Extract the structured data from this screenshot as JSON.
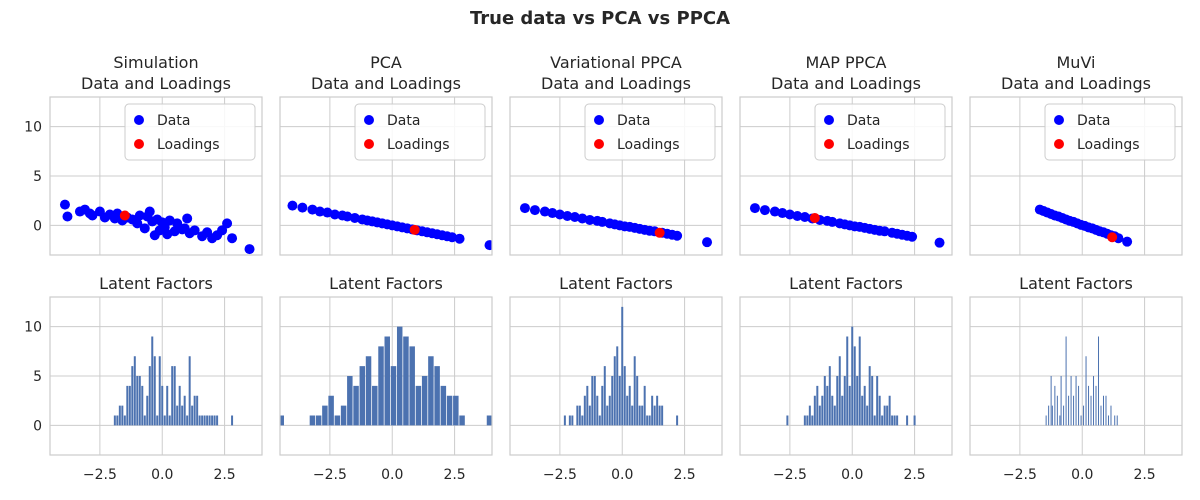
{
  "figure": {
    "suptitle": "True data vs PCA vs PPCA",
    "x_ticks": [
      "−2.5",
      "0.0",
      "2.5"
    ],
    "y_ticks": [
      "0",
      "5",
      "10"
    ]
  },
  "colors": {
    "data": "#0000ff",
    "loadings": "#ff0000",
    "bars": "#4c72b0"
  },
  "chart_data": [
    {
      "type": "scatter",
      "title_line1": "Simulation",
      "title_line2": "Data and Loadings",
      "xlim": [
        -4.5,
        4
      ],
      "ylim": [
        -3,
        13
      ],
      "grid": true,
      "legend": "upper-right",
      "series": [
        {
          "name": "Data",
          "x": [
            -3.9,
            -3.8,
            -3.3,
            -3.1,
            -2.9,
            -2.8,
            -2.5,
            -2.3,
            -2.1,
            -1.9,
            -1.8,
            -1.6,
            -1.4,
            -1.2,
            -1.0,
            -0.9,
            -0.7,
            -0.5,
            -0.4,
            -0.3,
            -0.2,
            -0.1,
            0.0,
            0.1,
            0.3,
            0.5,
            0.6,
            0.8,
            1.0,
            1.1,
            1.3,
            1.6,
            1.8,
            2.0,
            2.2,
            2.4,
            2.6,
            2.8,
            3.5,
            -0.6,
            0.2,
            0.9
          ],
          "y": [
            2.1,
            0.9,
            1.4,
            1.6,
            1.2,
            1.0,
            1.4,
            0.8,
            1.1,
            0.7,
            1.2,
            0.5,
            0.8,
            0.6,
            0.2,
            1.0,
            -0.3,
            1.4,
            0.4,
            -1.0,
            0.6,
            -0.5,
            0.3,
            -0.2,
            0.5,
            -0.6,
            0.2,
            -0.4,
            0.7,
            -0.8,
            -0.5,
            -1.1,
            -0.7,
            -1.3,
            -1.0,
            -0.5,
            0.2,
            -1.3,
            -2.4,
            0.9,
            -0.9,
            -0.3
          ]
        },
        {
          "name": "Loadings",
          "x": [
            -1.5
          ],
          "y": [
            1.0
          ]
        }
      ]
    },
    {
      "type": "scatter",
      "title_line1": "PCA",
      "title_line2": "Data and Loadings",
      "xlim": [
        -4.5,
        4
      ],
      "ylim": [
        -3,
        13
      ],
      "grid": true,
      "legend": "upper-right",
      "series": [
        {
          "name": "Data",
          "x": [
            -4.0,
            -3.6,
            -3.2,
            -2.9,
            -2.6,
            -2.3,
            -2.0,
            -1.8,
            -1.5,
            -1.2,
            -1.0,
            -0.8,
            -0.6,
            -0.4,
            -0.2,
            0.0,
            0.2,
            0.4,
            0.6,
            0.8,
            1.0,
            1.2,
            1.4,
            1.6,
            1.8,
            2.0,
            2.2,
            2.4,
            2.7,
            3.9
          ],
          "y": [
            2.0,
            1.8,
            1.6,
            1.4,
            1.3,
            1.1,
            1.0,
            0.9,
            0.75,
            0.6,
            0.5,
            0.4,
            0.3,
            0.2,
            0.1,
            0.0,
            -0.1,
            -0.2,
            -0.3,
            -0.4,
            -0.5,
            -0.6,
            -0.7,
            -0.8,
            -0.9,
            -1.0,
            -1.1,
            -1.2,
            -1.35,
            -2.0
          ]
        },
        {
          "name": "Loadings",
          "x": [
            0.9
          ],
          "y": [
            -0.45
          ]
        }
      ]
    },
    {
      "type": "scatter",
      "title_line1": "Variational PPCA",
      "title_line2": "Data and Loadings",
      "xlim": [
        -4.5,
        4
      ],
      "ylim": [
        -3,
        13
      ],
      "grid": true,
      "legend": "upper-right",
      "series": [
        {
          "name": "Data",
          "x": [
            -3.9,
            -3.5,
            -3.1,
            -2.8,
            -2.5,
            -2.2,
            -1.9,
            -1.6,
            -1.3,
            -1.0,
            -0.8,
            -0.5,
            -0.3,
            -0.1,
            0.1,
            0.3,
            0.5,
            0.7,
            0.9,
            1.1,
            1.3,
            1.6,
            1.8,
            2.0,
            2.2,
            3.4
          ],
          "y": [
            1.75,
            1.55,
            1.4,
            1.25,
            1.1,
            0.95,
            0.85,
            0.7,
            0.55,
            0.45,
            0.35,
            0.2,
            0.1,
            0.0,
            -0.1,
            -0.15,
            -0.25,
            -0.35,
            -0.45,
            -0.55,
            -0.6,
            -0.75,
            -0.85,
            -0.95,
            -1.05,
            -1.7
          ]
        },
        {
          "name": "Loadings",
          "x": [
            1.5
          ],
          "y": [
            -0.75
          ]
        }
      ]
    },
    {
      "type": "scatter",
      "title_line1": "MAP PPCA",
      "title_line2": "Data and Loadings",
      "xlim": [
        -4.5,
        4
      ],
      "ylim": [
        -3,
        13
      ],
      "grid": true,
      "legend": "upper-right",
      "series": [
        {
          "name": "Data",
          "x": [
            -3.9,
            -3.5,
            -3.1,
            -2.8,
            -2.5,
            -2.2,
            -1.9,
            -1.6,
            -1.3,
            -1.0,
            -0.8,
            -0.5,
            -0.3,
            -0.1,
            0.1,
            0.3,
            0.5,
            0.7,
            0.9,
            1.1,
            1.3,
            1.6,
            1.8,
            2.0,
            2.2,
            2.4,
            3.5
          ],
          "y": [
            1.75,
            1.55,
            1.4,
            1.25,
            1.1,
            0.95,
            0.85,
            0.7,
            0.55,
            0.45,
            0.35,
            0.2,
            0.1,
            0.0,
            -0.1,
            -0.15,
            -0.25,
            -0.35,
            -0.45,
            -0.55,
            -0.6,
            -0.75,
            -0.85,
            -0.95,
            -1.05,
            -1.15,
            -1.75
          ]
        },
        {
          "name": "Loadings",
          "x": [
            -1.5
          ],
          "y": [
            0.75
          ]
        }
      ]
    },
    {
      "type": "scatter",
      "title_line1": "MuVi",
      "title_line2": "Data and Loadings",
      "xlim": [
        -4.5,
        4
      ],
      "ylim": [
        -3,
        13
      ],
      "grid": true,
      "legend": "upper-right",
      "series": [
        {
          "name": "Data",
          "x": [
            -1.7,
            -1.55,
            -1.4,
            -1.25,
            -1.1,
            -0.95,
            -0.8,
            -0.65,
            -0.5,
            -0.35,
            -0.2,
            -0.05,
            0.1,
            0.25,
            0.4,
            0.55,
            0.7,
            0.85,
            1.0,
            1.15,
            1.3,
            1.45,
            1.8
          ],
          "y": [
            1.6,
            1.45,
            1.3,
            1.15,
            1.0,
            0.9,
            0.75,
            0.6,
            0.45,
            0.35,
            0.2,
            0.05,
            -0.05,
            -0.2,
            -0.3,
            -0.45,
            -0.6,
            -0.7,
            -0.85,
            -1.0,
            -1.1,
            -1.3,
            -1.65
          ]
        },
        {
          "name": "Loadings",
          "x": [
            1.2
          ],
          "y": [
            -1.2
          ]
        }
      ]
    },
    {
      "type": "bar",
      "title": "Latent Factors",
      "xlim": [
        -4.5,
        4
      ],
      "ylim": [
        -3,
        13
      ],
      "grid": true,
      "x": [
        -1.9,
        -1.8,
        -1.7,
        -1.6,
        -1.5,
        -1.4,
        -1.3,
        -1.2,
        -1.1,
        -1.0,
        -0.9,
        -0.8,
        -0.7,
        -0.6,
        -0.5,
        -0.4,
        -0.3,
        -0.2,
        -0.1,
        0.0,
        0.1,
        0.2,
        0.3,
        0.4,
        0.5,
        0.6,
        0.7,
        0.8,
        0.9,
        1.0,
        1.1,
        1.2,
        1.3,
        1.4,
        1.5,
        1.6,
        1.7,
        1.8,
        1.9,
        2.0,
        2.1,
        2.2,
        2.8
      ],
      "values": [
        1,
        1,
        2,
        2,
        1,
        4,
        4,
        6,
        7,
        5,
        5,
        4,
        1,
        3,
        6,
        9,
        7,
        1,
        7,
        4,
        1,
        4,
        1,
        6,
        6,
        2,
        4,
        2,
        3,
        1,
        7,
        2,
        3,
        3,
        1,
        1,
        1,
        1,
        1,
        1,
        1,
        1,
        1
      ],
      "bar_width": 0.08
    },
    {
      "type": "bar",
      "title": "Latent Factors",
      "xlim": [
        -4.5,
        4
      ],
      "ylim": [
        -3,
        13
      ],
      "grid": true,
      "x": [
        -4.45,
        -3.2,
        -2.95,
        -2.7,
        -2.45,
        -2.2,
        -1.95,
        -1.7,
        -1.45,
        -1.2,
        -0.95,
        -0.7,
        -0.45,
        -0.2,
        0.05,
        0.3,
        0.55,
        0.8,
        1.05,
        1.3,
        1.55,
        1.8,
        2.05,
        2.3,
        2.55,
        2.8,
        3.9
      ],
      "values": [
        1,
        1,
        1,
        2,
        3,
        1,
        2,
        5,
        4,
        6,
        7,
        4,
        8,
        9,
        6,
        10,
        9,
        8,
        4,
        5,
        7,
        6,
        4,
        3,
        3,
        1,
        1
      ],
      "bar_width": 0.22
    },
    {
      "type": "bar",
      "title": "Latent Factors",
      "xlim": [
        -4.5,
        4
      ],
      "ylim": [
        -3,
        13
      ],
      "grid": true,
      "x": [
        -2.3,
        -2.1,
        -2.0,
        -1.8,
        -1.7,
        -1.6,
        -1.5,
        -1.4,
        -1.3,
        -1.2,
        -1.1,
        -1.0,
        -0.9,
        -0.8,
        -0.7,
        -0.6,
        -0.5,
        -0.4,
        -0.3,
        -0.2,
        -0.1,
        0.0,
        0.1,
        0.2,
        0.3,
        0.4,
        0.5,
        0.6,
        0.7,
        0.8,
        0.9,
        1.0,
        1.1,
        1.2,
        1.3,
        1.4,
        1.5,
        1.6,
        2.2
      ],
      "values": [
        1,
        1,
        1,
        2,
        2,
        1,
        3,
        4,
        2,
        5,
        5,
        3,
        1,
        4,
        6,
        2,
        3,
        5,
        7,
        8,
        5,
        12,
        6,
        3,
        4,
        2,
        7,
        5,
        2,
        2,
        4,
        1,
        1,
        3,
        2,
        3,
        2,
        2,
        1
      ],
      "bar_width": 0.08
    },
    {
      "type": "bar",
      "title": "Latent Factors",
      "xlim": [
        -4.5,
        4
      ],
      "ylim": [
        -3,
        13
      ],
      "grid": true,
      "x": [
        -2.6,
        -1.9,
        -1.8,
        -1.7,
        -1.6,
        -1.5,
        -1.4,
        -1.3,
        -1.2,
        -1.1,
        -1.0,
        -0.9,
        -0.8,
        -0.7,
        -0.6,
        -0.5,
        -0.4,
        -0.3,
        -0.2,
        -0.1,
        0.0,
        0.1,
        0.2,
        0.3,
        0.4,
        0.5,
        0.6,
        0.7,
        0.8,
        0.9,
        1.0,
        1.1,
        1.2,
        1.3,
        1.4,
        1.5,
        1.6,
        1.7,
        1.8,
        2.2,
        2.5
      ],
      "values": [
        1,
        1,
        1,
        2,
        1,
        3,
        4,
        2,
        3,
        5,
        4,
        6,
        3,
        2,
        5,
        7,
        3,
        5,
        9,
        4,
        10,
        8,
        5,
        9,
        3,
        4,
        2,
        6,
        5,
        1,
        5,
        3,
        1,
        2,
        2,
        3,
        1,
        1,
        1,
        1,
        1
      ],
      "bar_width": 0.08
    },
    {
      "type": "bar",
      "title": "Latent Factors",
      "xlim": [
        -4.5,
        4
      ],
      "ylim": [
        -3,
        13
      ],
      "grid": true,
      "x": [
        -1.45,
        -1.35,
        -1.25,
        -1.2,
        -1.1,
        -1.0,
        -0.9,
        -0.85,
        -0.75,
        -0.65,
        -0.55,
        -0.45,
        -0.35,
        -0.25,
        -0.15,
        -0.05,
        0.05,
        0.15,
        0.25,
        0.35,
        0.45,
        0.55,
        0.65,
        0.75,
        0.85,
        0.95,
        1.05,
        1.15,
        1.3,
        1.4
      ],
      "values": [
        1,
        2,
        5,
        2,
        4,
        3,
        1,
        5,
        2,
        9,
        3,
        5,
        3,
        5,
        4,
        1,
        2,
        7,
        4,
        3,
        5,
        4,
        9,
        2,
        3,
        3,
        1,
        2,
        1,
        1
      ],
      "bar_width": 0.035
    }
  ]
}
